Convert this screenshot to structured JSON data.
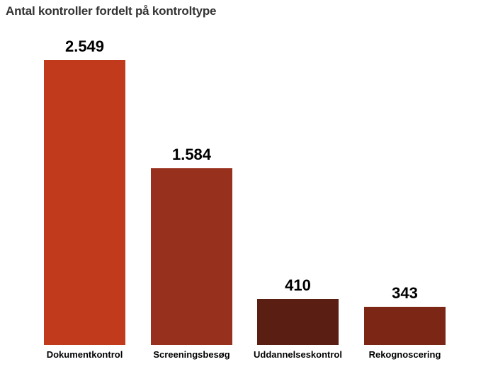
{
  "chart_data": {
    "type": "bar",
    "title": "Antal kontroller fordelt på kontroltype",
    "categories": [
      "Dokumentkontrol",
      "Screeningsbesøg",
      "Uddannelseskontrol",
      "Rekognoscering"
    ],
    "values": [
      2549,
      1584,
      410,
      343
    ],
    "value_labels": [
      "2.549",
      "1.584",
      "410",
      "343"
    ],
    "bar_colors": [
      "#c23a1c",
      "#98301e",
      "#5a1e12",
      "#7c2616"
    ],
    "xlabel": "",
    "ylabel": "",
    "ylim": [
      0,
      2700
    ],
    "grid": false,
    "legend": false,
    "axis_lines": false,
    "data_labels": true,
    "background_color": "#ffffff",
    "title_color": "#333333",
    "label_color": "#000000"
  }
}
